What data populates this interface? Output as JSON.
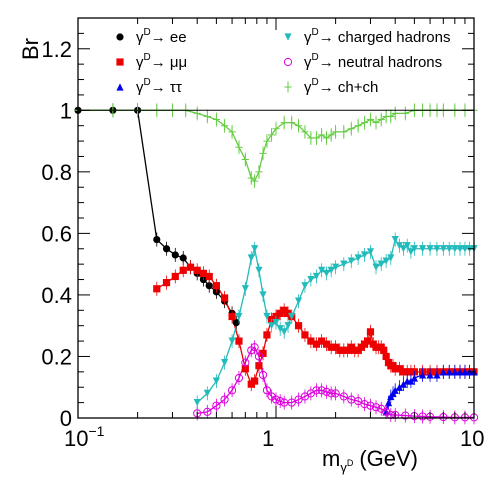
{
  "chart_data": {
    "type": "line",
    "title": "",
    "ylabel": "Br",
    "xlabel": "m",
    "xlabel_sub": "γ",
    "xlabel_subsup": "D",
    "xlabel_unit": "(GeV)",
    "xscale": "log",
    "xlim": [
      0.1,
      10
    ],
    "ylim": [
      0,
      1.3
    ],
    "x_ticks": [
      {
        "value": 0.1,
        "base": "10",
        "exp": "−1"
      },
      {
        "value": 1,
        "base": "1",
        "exp": ""
      },
      {
        "value": 10,
        "base": "10",
        "exp": ""
      }
    ],
    "y_ticks": [
      {
        "value": 0,
        "label": "0"
      },
      {
        "value": 0.2,
        "label": "0.2"
      },
      {
        "value": 0.4,
        "label": "0.4"
      },
      {
        "value": 0.6,
        "label": "0.6"
      },
      {
        "value": 0.8,
        "label": "0.8"
      },
      {
        "value": 1,
        "label": "1"
      },
      {
        "value": 1.2,
        "label": "1.2"
      }
    ],
    "reference_line": 1,
    "grid": false,
    "legend_position": "top",
    "series": [
      {
        "name": "ee",
        "prefix": "γ",
        "sup": "D",
        "arrow": "→",
        "color": "#000000",
        "marker": "circle-filled",
        "x": [
          0.1,
          0.15,
          0.2,
          0.25,
          0.28,
          0.31,
          0.34,
          0.37,
          0.4,
          0.43,
          0.46,
          0.5,
          0.55,
          0.6,
          0.63
        ],
        "y": [
          1.0,
          1.0,
          1.0,
          0.58,
          0.55,
          0.53,
          0.52,
          0.49,
          0.47,
          0.45,
          0.43,
          0.41,
          0.38,
          0.34,
          0.31
        ]
      },
      {
        "name": "μμ",
        "prefix": "γ",
        "sup": "D",
        "arrow": "→",
        "color": "#ee0000",
        "marker": "square-filled",
        "x": [
          0.25,
          0.28,
          0.31,
          0.34,
          0.37,
          0.4,
          0.43,
          0.46,
          0.5,
          0.55,
          0.6,
          0.65,
          0.7,
          0.75,
          0.78,
          0.82,
          0.86,
          0.9,
          0.95,
          1.0,
          1.05,
          1.1,
          1.15,
          1.2,
          1.3,
          1.4,
          1.5,
          1.6,
          1.7,
          1.8,
          1.9,
          2.0,
          2.1,
          2.2,
          2.3,
          2.4,
          2.5,
          2.6,
          2.7,
          2.8,
          2.9,
          3.0,
          3.1,
          3.2,
          3.3,
          3.4,
          3.5,
          3.6,
          3.7,
          3.8,
          3.9,
          4.0,
          4.2,
          4.4,
          4.6,
          4.8,
          5.0,
          5.5,
          6.0,
          6.5,
          7.0,
          7.5,
          8.0,
          8.5,
          9.0,
          9.5,
          10.0
        ],
        "y": [
          0.42,
          0.44,
          0.46,
          0.48,
          0.49,
          0.48,
          0.47,
          0.46,
          0.43,
          0.39,
          0.33,
          0.25,
          0.16,
          0.11,
          0.12,
          0.17,
          0.21,
          0.27,
          0.32,
          0.33,
          0.34,
          0.35,
          0.34,
          0.33,
          0.3,
          0.27,
          0.25,
          0.24,
          0.25,
          0.24,
          0.23,
          0.23,
          0.22,
          0.22,
          0.22,
          0.23,
          0.22,
          0.22,
          0.23,
          0.24,
          0.25,
          0.28,
          0.24,
          0.23,
          0.23,
          0.23,
          0.22,
          0.2,
          0.18,
          0.17,
          0.17,
          0.16,
          0.16,
          0.15,
          0.15,
          0.15,
          0.15,
          0.15,
          0.15,
          0.15,
          0.15,
          0.15,
          0.15,
          0.15,
          0.15,
          0.15,
          0.15
        ]
      },
      {
        "name": "ττ",
        "prefix": "γ",
        "sup": "D",
        "arrow": "→",
        "color": "#0000ee",
        "marker": "triangle-up-filled",
        "x": [
          3.6,
          3.7,
          3.8,
          3.9,
          4.0,
          4.2,
          4.4,
          4.6,
          4.8,
          5.0,
          5.5,
          6.0,
          6.5,
          7.0,
          7.5,
          8.0,
          8.5,
          9.0,
          9.5,
          10.0
        ],
        "y": [
          0.02,
          0.05,
          0.07,
          0.08,
          0.09,
          0.1,
          0.11,
          0.12,
          0.12,
          0.13,
          0.14,
          0.14,
          0.14,
          0.15,
          0.15,
          0.15,
          0.15,
          0.15,
          0.15,
          0.15
        ]
      },
      {
        "name": "charged hadrons",
        "prefix": "γ",
        "sup": "D",
        "arrow": "→",
        "color": "#22bbbb",
        "marker": "triangle-down-filled",
        "x": [
          0.4,
          0.45,
          0.5,
          0.55,
          0.6,
          0.65,
          0.7,
          0.75,
          0.78,
          0.82,
          0.86,
          0.9,
          0.95,
          1.0,
          1.05,
          1.1,
          1.15,
          1.2,
          1.3,
          1.4,
          1.5,
          1.6,
          1.7,
          1.8,
          1.9,
          2.0,
          2.2,
          2.4,
          2.6,
          2.8,
          3.0,
          3.2,
          3.4,
          3.6,
          3.8,
          4.0,
          4.2,
          4.4,
          4.6,
          4.8,
          5.0,
          5.5,
          6.0,
          6.5,
          7.0,
          7.5,
          8.0,
          8.5,
          9.0,
          9.5,
          10.0
        ],
        "y": [
          0.05,
          0.08,
          0.12,
          0.18,
          0.25,
          0.33,
          0.42,
          0.52,
          0.55,
          0.48,
          0.4,
          0.33,
          0.3,
          0.31,
          0.29,
          0.28,
          0.3,
          0.33,
          0.38,
          0.43,
          0.45,
          0.46,
          0.48,
          0.47,
          0.48,
          0.49,
          0.5,
          0.51,
          0.52,
          0.53,
          0.54,
          0.49,
          0.5,
          0.51,
          0.52,
          0.58,
          0.56,
          0.55,
          0.56,
          0.54,
          0.55,
          0.55,
          0.55,
          0.55,
          0.55,
          0.55,
          0.55,
          0.55,
          0.55,
          0.55,
          0.55
        ]
      },
      {
        "name": "neutral hadrons",
        "prefix": "γ",
        "sup": "D",
        "arrow": "→",
        "color": "#dd00dd",
        "marker": "circle-open",
        "x": [
          0.4,
          0.45,
          0.5,
          0.55,
          0.6,
          0.65,
          0.7,
          0.75,
          0.78,
          0.82,
          0.86,
          0.9,
          0.95,
          1.0,
          1.05,
          1.1,
          1.2,
          1.3,
          1.4,
          1.5,
          1.6,
          1.7,
          1.8,
          1.9,
          2.0,
          2.2,
          2.4,
          2.6,
          2.8,
          3.0,
          3.2,
          3.4,
          3.6,
          3.8,
          4.0,
          4.5,
          5.0,
          5.5,
          6.0,
          7.0,
          8.0,
          9.0,
          10.0
        ],
        "y": [
          0.015,
          0.02,
          0.04,
          0.06,
          0.09,
          0.13,
          0.18,
          0.22,
          0.23,
          0.2,
          0.14,
          0.09,
          0.07,
          0.06,
          0.055,
          0.05,
          0.05,
          0.06,
          0.07,
          0.08,
          0.09,
          0.09,
          0.085,
          0.08,
          0.08,
          0.07,
          0.06,
          0.055,
          0.045,
          0.04,
          0.035,
          0.03,
          0.02,
          0.01,
          0.01,
          0.008,
          0.006,
          0.005,
          0.004,
          0.003,
          0.002,
          0.002,
          0.002
        ]
      },
      {
        "name": "ch+ch",
        "prefix": "γ",
        "sup": "D",
        "arrow": "→",
        "color": "#66cc44",
        "marker": "plus",
        "x": [
          0.1,
          0.15,
          0.2,
          0.25,
          0.3,
          0.35,
          0.4,
          0.45,
          0.5,
          0.55,
          0.6,
          0.65,
          0.7,
          0.75,
          0.78,
          0.82,
          0.86,
          0.9,
          0.95,
          1.0,
          1.1,
          1.2,
          1.3,
          1.4,
          1.5,
          1.6,
          1.7,
          1.8,
          1.9,
          2.0,
          2.2,
          2.4,
          2.6,
          2.8,
          3.0,
          3.2,
          3.4,
          3.6,
          3.8,
          4.0,
          4.5,
          5.0,
          5.5,
          6.0,
          6.5,
          7.0,
          8.0,
          9.0,
          10.0
        ],
        "y": [
          1.0,
          1.0,
          1.0,
          1.0,
          1.0,
          1.0,
          0.99,
          0.98,
          0.97,
          0.95,
          0.93,
          0.88,
          0.84,
          0.78,
          0.77,
          0.8,
          0.86,
          0.9,
          0.92,
          0.94,
          0.96,
          0.96,
          0.95,
          0.93,
          0.91,
          0.91,
          0.92,
          0.91,
          0.92,
          0.93,
          0.93,
          0.94,
          0.95,
          0.96,
          0.97,
          0.96,
          0.97,
          0.98,
          0.98,
          0.99,
          0.99,
          1.0,
          1.0,
          1.0,
          1.0,
          1.0,
          1.0,
          1.0,
          1.0
        ]
      }
    ]
  }
}
